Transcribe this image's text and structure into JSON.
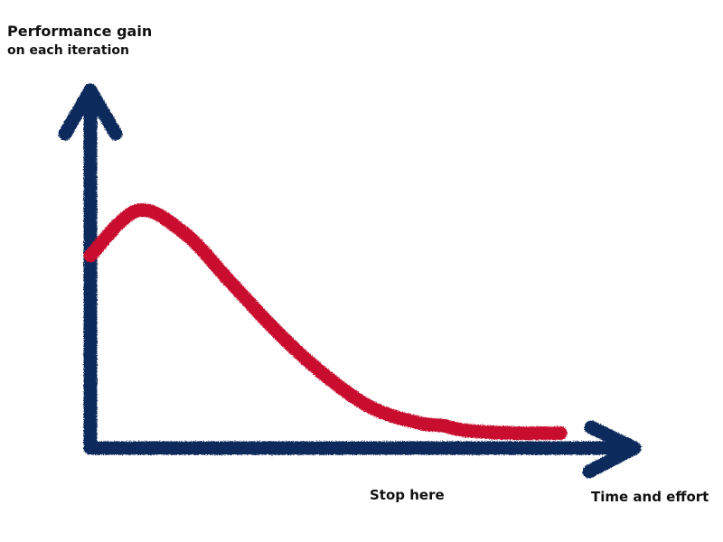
{
  "chart_data": {
    "type": "line",
    "ylabel": [
      "Performance gain",
      "on each iteration"
    ],
    "xlabel": "Time and effort",
    "x": [
      0.0,
      0.1,
      0.2,
      0.3,
      0.4,
      0.5,
      0.6,
      0.7,
      0.75,
      0.8,
      0.9,
      1.0
    ],
    "series": [
      {
        "values": [
          0.77,
          0.95,
          0.86,
          0.66,
          0.46,
          0.29,
          0.16,
          0.1,
          0.09,
          0.07,
          0.06,
          0.06
        ]
      }
    ],
    "marker": {
      "x": 0.675,
      "label": "Stop here"
    },
    "xlim": [
      0,
      1
    ],
    "ylim": [
      0,
      1.2
    ],
    "grid": false,
    "colors": {
      "axis": "#0f2a5c",
      "curve": "#c8102e",
      "marker": "#0b5c80"
    }
  }
}
